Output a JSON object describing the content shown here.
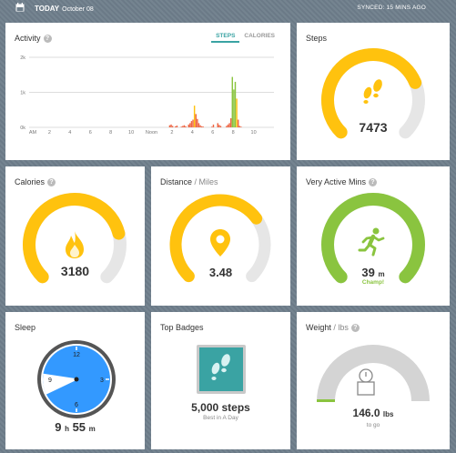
{
  "header": {
    "today": "TODAY",
    "date": "October 08",
    "synced": "SYNCED: 15 MINS AGO"
  },
  "colors": {
    "gold": "#ffc20e",
    "green": "#8ac43f",
    "teal": "#3aa3a3",
    "blue": "#3399ff",
    "track": "#e6e6e6"
  },
  "activity": {
    "title": "Activity",
    "tabs": [
      "STEPS",
      "CALORIES"
    ],
    "chart_data": {
      "type": "bar",
      "ylim": [
        0,
        2000
      ],
      "yticks": [
        "2k",
        "1k",
        "0k"
      ],
      "xticks": [
        "AM",
        "2",
        "4",
        "6",
        "8",
        "10",
        "Noon",
        "2",
        "4",
        "6",
        "8",
        "10"
      ],
      "values": [
        0,
        0,
        0,
        0,
        0,
        0,
        0,
        0,
        0,
        0,
        0,
        0,
        0,
        0,
        0,
        0,
        0,
        0,
        0,
        0,
        0,
        0,
        0,
        0,
        0,
        0,
        0,
        0,
        0,
        0,
        0,
        0,
        0,
        0,
        0,
        0,
        0,
        0,
        0,
        0,
        0,
        0,
        0,
        0,
        0,
        0,
        0,
        0,
        0,
        0,
        0,
        0,
        0,
        0,
        0,
        0,
        0,
        0,
        0,
        0,
        0,
        0,
        0,
        0,
        0,
        0,
        0,
        0,
        0,
        0,
        0,
        0,
        0,
        0,
        0,
        0,
        0,
        0,
        0,
        0,
        0,
        0,
        0,
        0,
        0,
        0,
        0,
        0,
        0,
        0,
        0,
        0,
        0,
        0,
        0,
        0,
        60,
        80,
        40,
        0,
        30,
        50,
        0,
        0,
        20,
        40,
        60,
        30,
        0,
        80,
        120,
        180,
        220,
        620,
        380,
        240,
        120,
        60,
        30,
        20,
        0,
        0,
        0,
        0,
        0,
        20,
        80,
        0,
        0,
        120,
        70,
        40,
        0,
        0,
        0,
        40,
        80,
        120,
        260,
        1440,
        1080,
        1300,
        820,
        220,
        40,
        20,
        0,
        0,
        0,
        0,
        0,
        0,
        0,
        0,
        0,
        0,
        0,
        0,
        0,
        0,
        0,
        0,
        0,
        0,
        0,
        0,
        0,
        0
      ]
    }
  },
  "steps": {
    "title": "Steps",
    "value": "7473",
    "fraction": 0.75
  },
  "calories": {
    "title": "Calories",
    "value": "3180",
    "fraction": 0.78
  },
  "distance": {
    "title": "Distance",
    "sub": "Miles",
    "sep": " / ",
    "value": "3.48",
    "fraction": 0.7
  },
  "active": {
    "title": "Very Active Mins",
    "value": "39",
    "unit": "m",
    "note": "Champ!",
    "fraction": 1.0
  },
  "sleep": {
    "title": "Sleep",
    "hours": "9",
    "h": "h",
    "mins": "55",
    "m": "m",
    "clock": [
      "12",
      "3",
      "6",
      "9"
    ]
  },
  "badges": {
    "title": "Top Badges",
    "name": "5,000 steps",
    "desc": "Best in A Day"
  },
  "weight": {
    "title": "Weight",
    "sub": "lbs",
    "sep": " / ",
    "value": "146.0",
    "unit": "lbs",
    "note": "to go"
  }
}
